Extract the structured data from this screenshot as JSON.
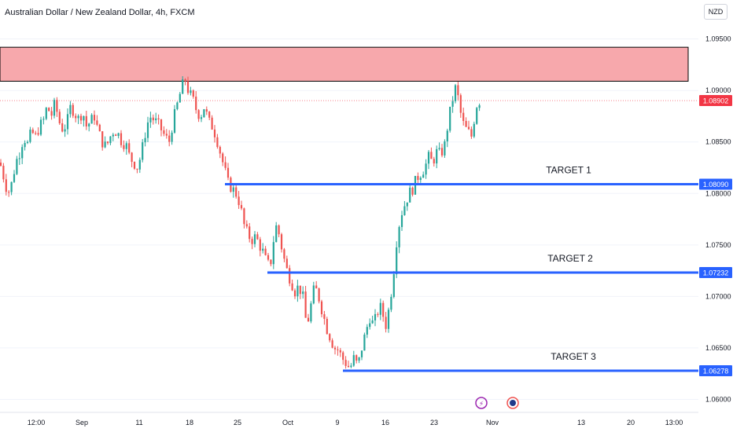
{
  "header": {
    "title": "Australian Dollar / New Zealand Dollar, 4h, FXCM",
    "currency": "NZD"
  },
  "colors": {
    "bull": "#26a69a",
    "bear": "#ef5350",
    "target_line": "#2962ff",
    "zone_fill": "#f7a8ac",
    "current_price_tag": "#f23645"
  },
  "chart_data": {
    "type": "candlestick",
    "symbol": "AUDNZD",
    "timeframe": "4h",
    "y_ticks": [
      "1.09500",
      "1.09000",
      "1.08500",
      "1.08000",
      "1.07500",
      "1.07000",
      "1.06500",
      "1.06000"
    ],
    "x_ticks": [
      "12:00",
      "Sep",
      "11",
      "18",
      "25",
      "Oct",
      "9",
      "16",
      "23",
      "Nov",
      "13",
      "20",
      "13:00"
    ],
    "ylim": [
      1.0595,
      1.0965
    ],
    "current_price": "1.08902",
    "resistance_zone": {
      "low": 1.0909,
      "high": 1.0942
    },
    "targets": [
      {
        "label": "TARGET 1",
        "price": "1.08090"
      },
      {
        "label": "TARGET 2",
        "price": "1.07232"
      },
      {
        "label": "TARGET 3",
        "price": "1.06278"
      }
    ],
    "price_path": [
      [
        0,
        1.083
      ],
      [
        5,
        1.0815
      ],
      [
        10,
        1.08
      ],
      [
        15,
        1.081
      ],
      [
        20,
        1.083
      ],
      [
        25,
        1.084
      ],
      [
        30,
        1.0855
      ],
      [
        35,
        1.0848
      ],
      [
        40,
        1.086
      ],
      [
        45,
        1.0855
      ],
      [
        50,
        1.0865
      ],
      [
        55,
        1.087
      ],
      [
        60,
        1.0885
      ],
      [
        65,
        1.0875
      ],
      [
        70,
        1.0888
      ],
      [
        75,
        1.087
      ],
      [
        80,
        1.0862
      ],
      [
        85,
        1.0868
      ],
      [
        90,
        1.0885
      ],
      [
        95,
        1.0878
      ],
      [
        100,
        1.0872
      ],
      [
        105,
        1.088
      ],
      [
        110,
        1.0865
      ],
      [
        115,
        1.087
      ],
      [
        120,
        1.0875
      ],
      [
        125,
        1.086
      ],
      [
        130,
        1.085
      ],
      [
        135,
        1.0845
      ],
      [
        140,
        1.0855
      ],
      [
        145,
        1.0862
      ],
      [
        150,
        1.0858
      ],
      [
        155,
        1.085
      ],
      [
        160,
        1.0848
      ],
      [
        165,
        1.0835
      ],
      [
        170,
        1.083
      ],
      [
        175,
        1.0825
      ],
      [
        180,
        1.084
      ],
      [
        185,
        1.086
      ],
      [
        190,
        1.0875
      ],
      [
        195,
        1.0872
      ],
      [
        200,
        1.0868
      ],
      [
        205,
        1.0862
      ],
      [
        210,
        1.0855
      ],
      [
        215,
        1.085
      ],
      [
        220,
        1.087
      ],
      [
        225,
        1.0885
      ],
      [
        230,
        1.09
      ],
      [
        235,
        1.0912
      ],
      [
        240,
        1.0898
      ],
      [
        245,
        1.0892
      ],
      [
        250,
        1.088
      ],
      [
        255,
        1.0875
      ],
      [
        260,
        1.0885
      ],
      [
        265,
        1.087
      ],
      [
        270,
        1.0865
      ],
      [
        275,
        1.0855
      ],
      [
        280,
        1.084
      ],
      [
        285,
        1.0825
      ],
      [
        290,
        1.081
      ],
      [
        295,
        1.0805
      ],
      [
        300,
        1.08
      ],
      [
        305,
        1.079
      ],
      [
        310,
        1.077
      ],
      [
        315,
        1.076
      ],
      [
        320,
        1.0755
      ],
      [
        325,
        1.0758
      ],
      [
        330,
        1.075
      ],
      [
        335,
        1.0742
      ],
      [
        340,
        1.073
      ],
      [
        345,
        1.0735
      ],
      [
        350,
        1.077
      ],
      [
        355,
        1.076
      ],
      [
        360,
        1.074
      ],
      [
        365,
        1.0725
      ],
      [
        370,
        1.0715
      ],
      [
        375,
        1.0705
      ],
      [
        380,
        1.071
      ],
      [
        385,
        1.07
      ],
      [
        390,
        1.067
      ],
      [
        395,
        1.069
      ],
      [
        400,
        1.071
      ],
      [
        405,
        1.07
      ],
      [
        410,
        1.0685
      ],
      [
        415,
        1.067
      ],
      [
        420,
        1.066
      ],
      [
        425,
        1.065
      ],
      [
        430,
        1.0648
      ],
      [
        435,
        1.064
      ],
      [
        440,
        1.0635
      ],
      [
        445,
        1.063
      ],
      [
        450,
        1.064
      ],
      [
        455,
        1.0632
      ],
      [
        460,
        1.065
      ],
      [
        465,
        1.0665
      ],
      [
        470,
        1.068
      ],
      [
        475,
        1.0672
      ],
      [
        480,
        1.0685
      ],
      [
        485,
        1.069
      ],
      [
        490,
        1.067
      ],
      [
        495,
        1.069
      ],
      [
        500,
        1.072
      ],
      [
        505,
        1.076
      ],
      [
        510,
        1.078
      ],
      [
        515,
        1.079
      ],
      [
        520,
        1.08
      ],
      [
        525,
        1.0805
      ],
      [
        530,
        1.0815
      ],
      [
        535,
        1.082
      ],
      [
        540,
        1.0825
      ],
      [
        545,
        1.0835
      ],
      [
        550,
        1.083
      ],
      [
        555,
        1.084
      ],
      [
        560,
        1.0838
      ],
      [
        565,
        1.0845
      ],
      [
        570,
        1.087
      ],
      [
        575,
        1.089
      ],
      [
        580,
        1.0905
      ],
      [
        585,
        1.088
      ],
      [
        590,
        1.0865
      ],
      [
        595,
        1.086
      ],
      [
        600,
        1.0855
      ],
      [
        605,
        1.0885
      ],
      [
        610,
        1.089
      ]
    ]
  }
}
